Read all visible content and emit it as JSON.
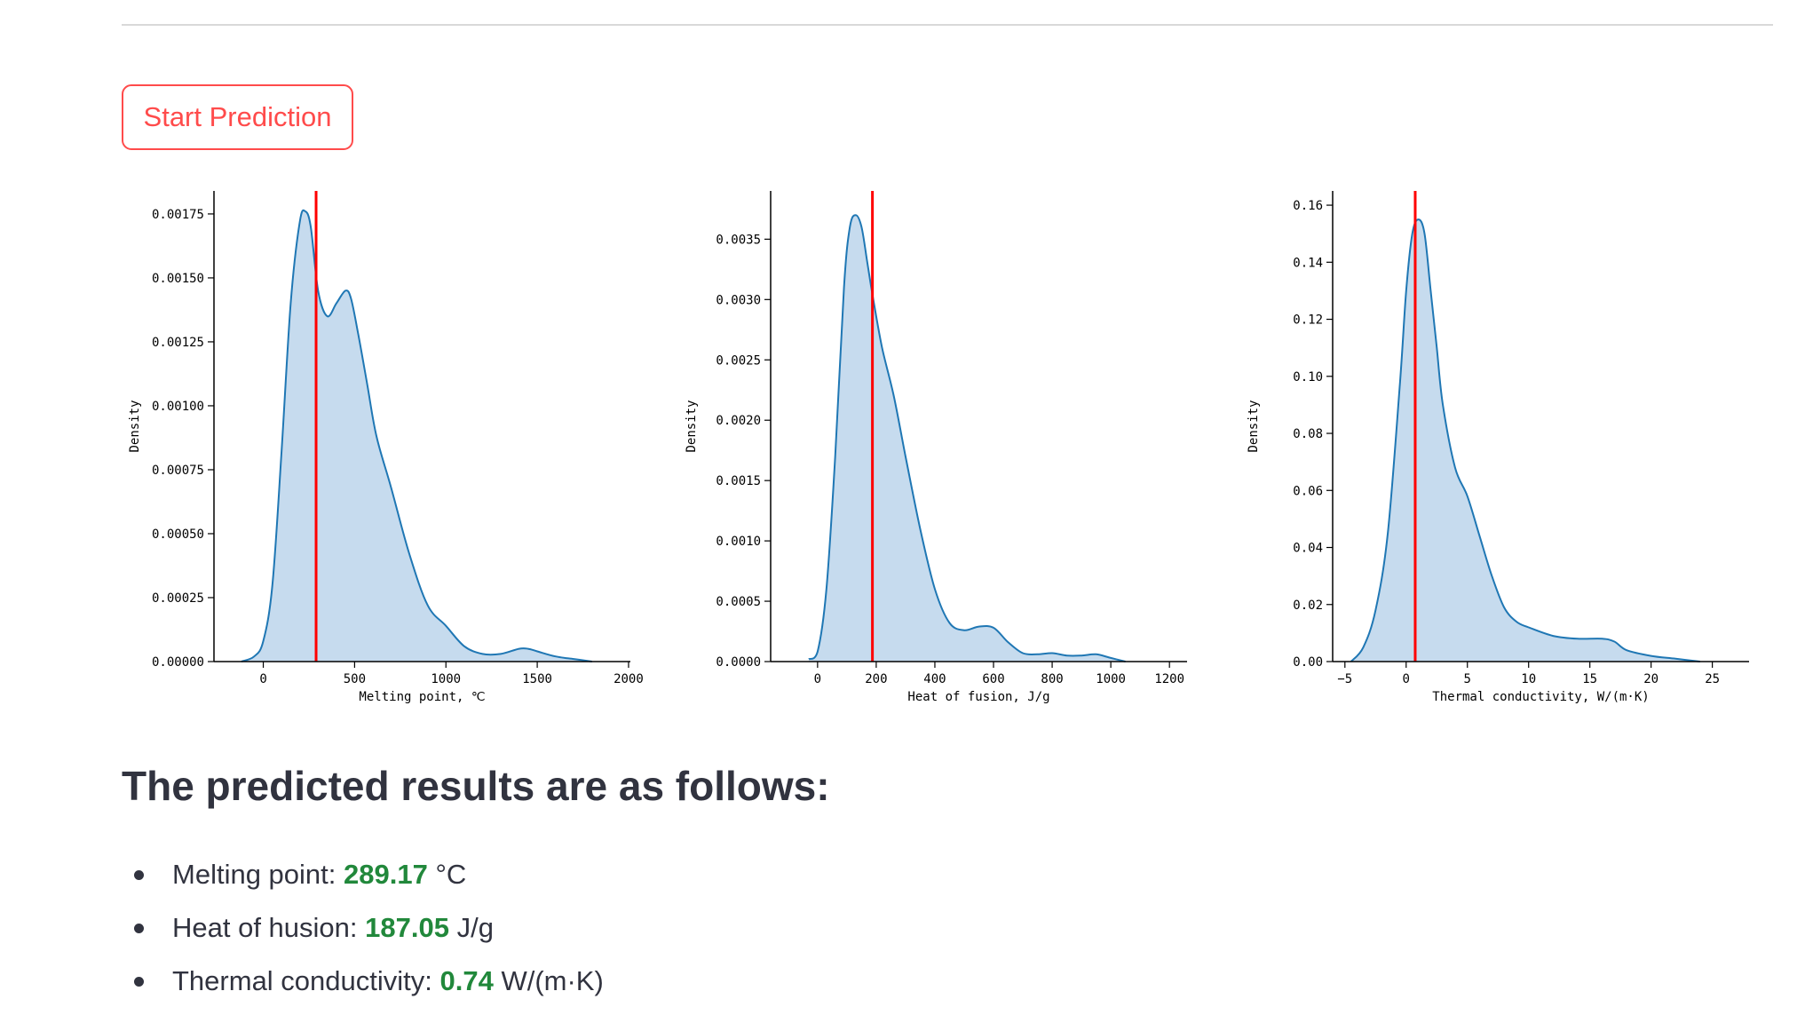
{
  "button": {
    "label": "Start Prediction"
  },
  "results": {
    "title": "The predicted results are as follows:",
    "items": [
      {
        "label": "Melting point: ",
        "value": "289.17",
        "unit": " °C"
      },
      {
        "label": "Heat of husion: ",
        "value": "187.05",
        "unit": " J/g"
      },
      {
        "label": "Thermal conductivity: ",
        "value": "0.74",
        "unit": " W/(m·K)"
      }
    ]
  },
  "colors": {
    "accent": "#ff4b4b",
    "value_green": "#21883b",
    "kde_line": "#1f77b4",
    "kde_fill": "#c6dbee",
    "marker_line": "#ff0000"
  },
  "chart_data": [
    {
      "type": "area",
      "xlabel": "Melting point, ℃",
      "ylabel": "Density",
      "xlim": [
        -270,
        2010
      ],
      "ylim": [
        0,
        0.00184
      ],
      "xticks": [
        0,
        500,
        1000,
        1500,
        2000
      ],
      "yticks": [
        0,
        0.00025,
        0.0005,
        0.00075,
        0.001,
        0.00125,
        0.0015,
        0.00175
      ],
      "ytick_labels": [
        "0.00000",
        "0.00025",
        "0.00050",
        "0.00075",
        "0.00100",
        "0.00125",
        "0.00150",
        "0.00175"
      ],
      "marker_x": 289.17,
      "x": [
        -120,
        -50,
        0,
        50,
        100,
        150,
        200,
        230,
        260,
        300,
        350,
        400,
        450,
        480,
        520,
        570,
        620,
        700,
        800,
        900,
        1000,
        1100,
        1200,
        1300,
        1400,
        1450,
        1500,
        1600,
        1700,
        1800
      ],
      "y": [
        0,
        2e-05,
        8e-05,
        0.0003,
        0.00082,
        0.0014,
        0.00172,
        0.00176,
        0.0017,
        0.00145,
        0.00135,
        0.0014,
        0.00145,
        0.00142,
        0.00128,
        0.00108,
        0.00088,
        0.00068,
        0.00042,
        0.00022,
        0.00014,
        6e-05,
        3e-05,
        3e-05,
        5e-05,
        5e-05,
        4e-05,
        2e-05,
        1e-05,
        0
      ]
    },
    {
      "type": "area",
      "xlabel": "Heat of fusion, J/g",
      "ylabel": "Density",
      "xlim": [
        -160,
        1260
      ],
      "ylim": [
        0,
        0.0039
      ],
      "xticks": [
        0,
        200,
        400,
        600,
        800,
        1000,
        1200
      ],
      "yticks": [
        0,
        0.0005,
        0.001,
        0.0015,
        0.002,
        0.0025,
        0.003,
        0.0035
      ],
      "ytick_labels": [
        "0.0000",
        "0.0005",
        "0.0010",
        "0.0015",
        "0.0020",
        "0.0025",
        "0.0030",
        "0.0035"
      ],
      "marker_x": 187.05,
      "x": [
        -30,
        0,
        30,
        60,
        90,
        110,
        130,
        150,
        170,
        190,
        220,
        260,
        300,
        350,
        400,
        450,
        500,
        550,
        600,
        650,
        700,
        750,
        800,
        850,
        900,
        950,
        1000,
        1050
      ],
      "y": [
        2e-05,
        8e-05,
        0.0006,
        0.0017,
        0.0031,
        0.0036,
        0.0037,
        0.0036,
        0.0033,
        0.003,
        0.0026,
        0.0022,
        0.0017,
        0.0011,
        0.0006,
        0.00032,
        0.00026,
        0.00029,
        0.00028,
        0.00016,
        7e-05,
        6e-05,
        7e-05,
        5e-05,
        5e-05,
        6e-05,
        3e-05,
        0
      ]
    },
    {
      "type": "area",
      "xlabel": "Thermal conductivity, W/(m·K)",
      "ylabel": "Density",
      "xlim": [
        -6,
        28
      ],
      "ylim": [
        0,
        0.165
      ],
      "xticks": [
        -5,
        0,
        5,
        10,
        15,
        20,
        25
      ],
      "yticks": [
        0,
        0.02,
        0.04,
        0.06,
        0.08,
        0.1,
        0.12,
        0.14,
        0.16
      ],
      "ytick_labels": [
        "0.00",
        "0.02",
        "0.04",
        "0.06",
        "0.08",
        "0.10",
        "0.12",
        "0.14",
        "0.16"
      ],
      "marker_x": 0.74,
      "x": [
        -4.5,
        -3.5,
        -2.5,
        -1.5,
        -0.5,
        0,
        0.5,
        1,
        1.5,
        2,
        2.5,
        3,
        4,
        5,
        6,
        7,
        8,
        9,
        10,
        12,
        14,
        16,
        17,
        18,
        20,
        22,
        24
      ],
      "y": [
        0,
        0.005,
        0.018,
        0.045,
        0.098,
        0.13,
        0.15,
        0.155,
        0.15,
        0.13,
        0.11,
        0.09,
        0.068,
        0.058,
        0.044,
        0.03,
        0.019,
        0.014,
        0.012,
        0.009,
        0.008,
        0.008,
        0.007,
        0.004,
        0.002,
        0.001,
        0
      ]
    }
  ]
}
